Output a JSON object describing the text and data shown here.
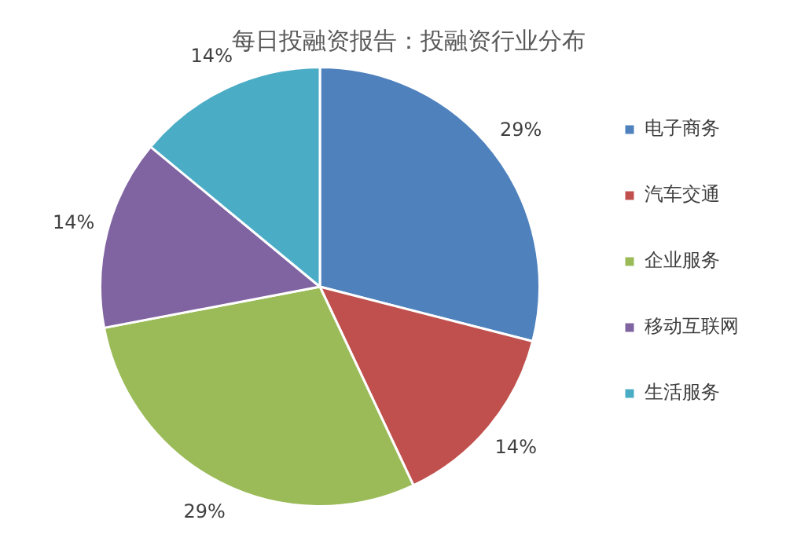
{
  "chart_data": {
    "type": "pie",
    "title": "每日投融资报告：投融资行业分布",
    "categories": [
      "电子商务",
      "汽车交通",
      "企业服务",
      "移动互联网",
      "生活服务"
    ],
    "values": [
      29,
      14,
      29,
      14,
      14
    ],
    "colors": [
      "#4f81bd",
      "#c0504d",
      "#9bbb59",
      "#8064a2",
      "#4bacc6"
    ],
    "value_labels": [
      "29%",
      "14%",
      "29%",
      "14%",
      "14%"
    ],
    "legend": "right"
  }
}
